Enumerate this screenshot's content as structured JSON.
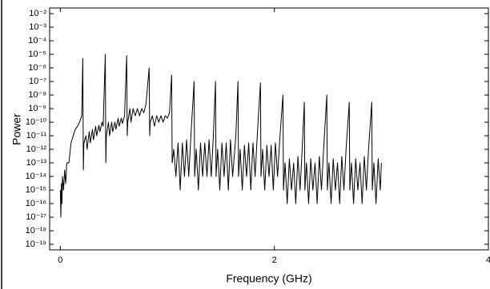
{
  "chart_data": {
    "type": "line",
    "xlabel": "Frequency (GHz)",
    "ylabel": "Power",
    "log_y": true,
    "xlim": [
      -0.1,
      4
    ],
    "xticks": [
      0,
      2,
      4
    ],
    "ylim": [
      3.9e-20,
      0.026
    ],
    "yticks": [
      {
        "value": 0.01,
        "label": "10⁻²"
      },
      {
        "value": 0.001,
        "label": "10⁻³"
      },
      {
        "value": 0.0001,
        "label": "10⁻⁴"
      },
      {
        "value": 1e-05,
        "label": "10⁻⁵"
      },
      {
        "value": 1e-06,
        "label": "10⁻⁶"
      },
      {
        "value": 1e-07,
        "label": "10⁻⁷"
      },
      {
        "value": 1e-08,
        "label": "10⁻⁸"
      },
      {
        "value": 1e-09,
        "label": "10⁻⁹"
      },
      {
        "value": 1e-10,
        "label": "10⁻¹⁰"
      },
      {
        "value": 1e-11,
        "label": "10⁻¹¹"
      },
      {
        "value": 1e-12,
        "label": "10⁻¹²"
      },
      {
        "value": 1e-13,
        "label": "10⁻¹³"
      },
      {
        "value": 1e-14,
        "label": "10⁻¹⁴"
      },
      {
        "value": 1e-15,
        "label": "10⁻¹⁵"
      },
      {
        "value": 1e-16,
        "label": "10⁻¹⁶"
      },
      {
        "value": 1e-17,
        "label": "10⁻¹⁷"
      },
      {
        "value": 1e-18,
        "label": "10⁻¹⁸"
      },
      {
        "value": 1e-19,
        "label": "10⁻¹⁹"
      }
    ],
    "x": [
      0,
      0.005,
      0.01,
      0.015,
      0.02,
      0.03,
      0.04,
      0.05,
      0.06,
      0.08,
      0.1,
      0.12,
      0.14,
      0.16,
      0.18,
      0.2,
      0.21,
      0.215,
      0.22,
      0.24,
      0.25,
      0.27,
      0.28,
      0.3,
      0.31,
      0.33,
      0.34,
      0.36,
      0.37,
      0.39,
      0.4,
      0.42,
      0.425,
      0.43,
      0.45,
      0.46,
      0.48,
      0.49,
      0.51,
      0.52,
      0.54,
      0.55,
      0.57,
      0.58,
      0.6,
      0.62,
      0.625,
      0.63,
      0.65,
      0.66,
      0.68,
      0.7,
      0.72,
      0.74,
      0.76,
      0.78,
      0.8,
      0.83,
      0.835,
      0.84,
      0.86,
      0.88,
      0.9,
      0.92,
      0.94,
      0.96,
      0.98,
      1.0,
      1.02,
      1.04,
      1.045,
      1.06,
      1.08,
      1.1,
      1.12,
      1.14,
      1.16,
      1.18,
      1.2,
      1.22,
      1.25,
      1.255,
      1.27,
      1.29,
      1.31,
      1.33,
      1.35,
      1.37,
      1.39,
      1.41,
      1.43,
      1.45,
      1.455,
      1.47,
      1.49,
      1.51,
      1.53,
      1.55,
      1.57,
      1.59,
      1.61,
      1.64,
      1.66,
      1.665,
      1.68,
      1.7,
      1.72,
      1.74,
      1.76,
      1.78,
      1.8,
      1.82,
      1.84,
      1.87,
      1.875,
      1.89,
      1.91,
      1.93,
      1.95,
      1.97,
      1.99,
      2.01,
      2.03,
      2.05,
      2.08,
      2.085,
      2.1,
      2.12,
      2.14,
      2.16,
      2.18,
      2.2,
      2.22,
      2.24,
      2.26,
      2.28,
      2.285,
      2.3,
      2.32,
      2.34,
      2.36,
      2.38,
      2.4,
      2.42,
      2.44,
      2.46,
      2.49,
      2.495,
      2.51,
      2.53,
      2.55,
      2.57,
      2.59,
      2.61,
      2.63,
      2.65,
      2.67,
      2.7,
      2.705,
      2.72,
      2.74,
      2.76,
      2.78,
      2.8,
      2.82,
      2.84,
      2.86,
      2.88,
      2.91,
      2.915,
      2.93,
      2.95,
      2.97,
      2.99,
      3.0
    ],
    "series": [
      {
        "color": "#000000",
        "values": [
          1e-15,
          1e-17,
          3e-15,
          1e-16,
          1e-14,
          1e-15,
          3e-14,
          3e-15,
          1e-13,
          1e-13,
          3e-12,
          1e-11,
          3e-11,
          5e-11,
          1e-10,
          3e-10,
          5e-06,
          3e-14,
          3e-12,
          1e-11,
          1e-12,
          2e-11,
          3e-12,
          3e-11,
          5e-12,
          5e-11,
          1e-11,
          6e-11,
          2e-11,
          1e-10,
          5e-11,
          1e-05,
          1e-13,
          1e-11,
          1e-10,
          1e-11,
          1e-10,
          2e-11,
          1e-10,
          3e-11,
          2e-10,
          5e-11,
          2e-10,
          8e-11,
          3e-10,
          8e-06,
          1e-11,
          1e-10,
          1e-09,
          1e-10,
          1e-09,
          3e-10,
          1e-09,
          3e-10,
          1e-09,
          5e-10,
          2e-09,
          1e-06,
          1e-11,
          1e-10,
          3e-10,
          5e-11,
          3e-10,
          1e-10,
          3e-10,
          1e-10,
          3e-10,
          2e-10,
          5e-10,
          3e-07,
          1e-13,
          1e-12,
          1e-14,
          3e-12,
          1e-15,
          3e-12,
          1e-14,
          5e-12,
          1e-14,
          1e-11,
          1e-07,
          1e-14,
          1e-12,
          1e-15,
          3e-12,
          1e-14,
          3e-12,
          1e-14,
          5e-12,
          1e-14,
          1e-11,
          1e-07,
          1e-14,
          1e-12,
          1e-15,
          3e-12,
          1e-14,
          3e-12,
          1e-15,
          5e-12,
          1e-14,
          1e-11,
          1e-07,
          1e-14,
          1e-12,
          1e-15,
          2e-12,
          1e-14,
          3e-12,
          1e-15,
          3e-12,
          1e-14,
          1e-11,
          8e-08,
          1e-14,
          1e-12,
          1e-15,
          2e-12,
          1e-14,
          2e-12,
          1e-15,
          3e-12,
          1e-14,
          5e-12,
          1e-08,
          1e-15,
          1e-13,
          1e-16,
          2e-13,
          1e-15,
          1e-13,
          1e-16,
          3e-13,
          1e-15,
          1e-12,
          3e-09,
          1e-15,
          1e-13,
          1e-16,
          2e-13,
          1e-15,
          1e-13,
          1e-16,
          3e-13,
          1e-15,
          1e-12,
          1e-08,
          1e-15,
          1e-13,
          1e-16,
          2e-13,
          1e-15,
          1e-13,
          1e-16,
          3e-13,
          1e-15,
          1e-12,
          3e-09,
          1e-15,
          1e-13,
          1e-16,
          2e-13,
          1e-15,
          1e-13,
          1e-16,
          3e-13,
          1e-15,
          1e-12,
          3e-09,
          1e-15,
          1e-13,
          1e-16,
          2e-13,
          1e-15,
          1e-13
        ]
      }
    ]
  }
}
